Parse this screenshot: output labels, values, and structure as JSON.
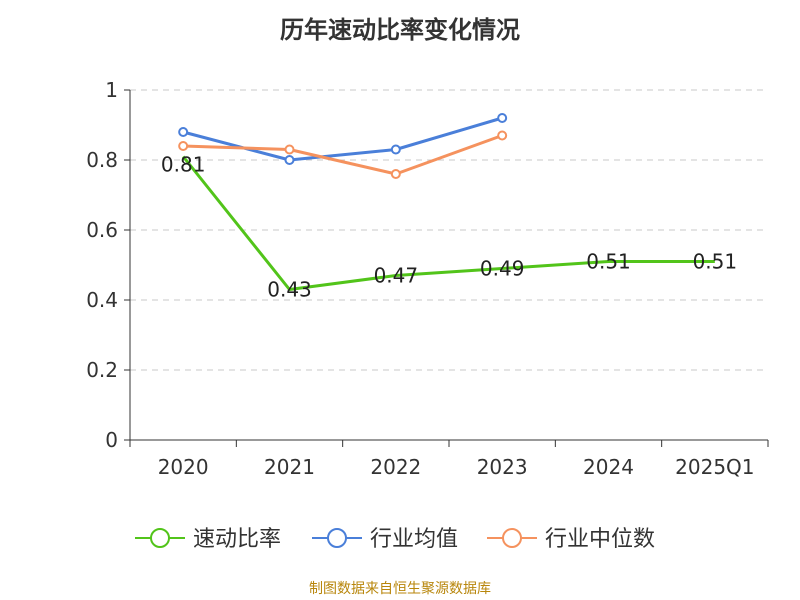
{
  "title": "历年速动比率变化情况",
  "source": "制图数据来自恒生聚源数据库",
  "chart_data": {
    "type": "line",
    "categories": [
      "2020",
      "2021",
      "2022",
      "2023",
      "2024",
      "2025Q1"
    ],
    "ylim": [
      0,
      1
    ],
    "yticks": [
      0,
      0.2,
      0.4,
      0.6,
      0.8,
      1
    ],
    "ytick_labels": [
      "0",
      "0.2",
      "0.4",
      "0.6",
      "0.8",
      "1"
    ],
    "grid": true,
    "legend_position": "bottom",
    "series": [
      {
        "name": "速动比率",
        "color": "#52c41a",
        "values": [
          0.81,
          0.43,
          0.47,
          0.49,
          0.51,
          0.51
        ],
        "data_labels": [
          "0.81",
          "0.43",
          "0.47",
          "0.49",
          "0.51",
          "0.51"
        ]
      },
      {
        "name": "行业均值",
        "color": "#4a7fd9",
        "values": [
          0.88,
          0.8,
          0.83,
          0.92,
          null,
          null
        ]
      },
      {
        "name": "行业中位数",
        "color": "#f5925e",
        "values": [
          0.84,
          0.83,
          0.76,
          0.87,
          null,
          null
        ]
      }
    ]
  }
}
